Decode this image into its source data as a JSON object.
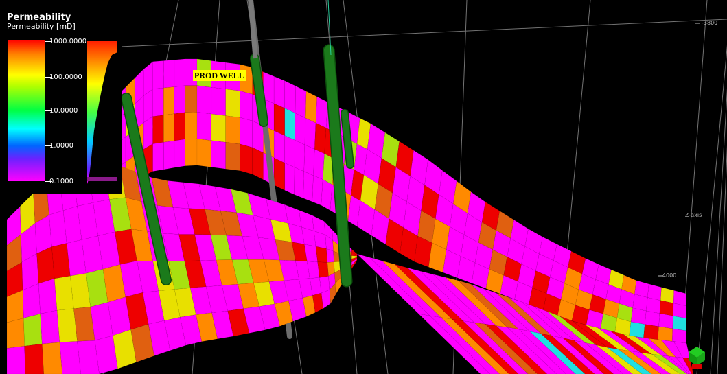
{
  "legend": {
    "title": "Permeability",
    "subtitle": "Permeability [mD]",
    "ticks": [
      "1000.0000",
      "100.0000",
      "10.0000",
      "1.0000",
      "0.1000"
    ]
  },
  "well_label": "PROD WELL",
  "axes": {
    "depth_top": "-3800",
    "axis_name": "Z-axis",
    "depth_bottom": "-4000"
  },
  "colors": {
    "background": "#000000",
    "well": "#1a7a1a",
    "label_bg": "#ffff00",
    "dominant_cell": "#ff00ff"
  },
  "icons": {
    "orientation": "orientation-cube-icon"
  }
}
